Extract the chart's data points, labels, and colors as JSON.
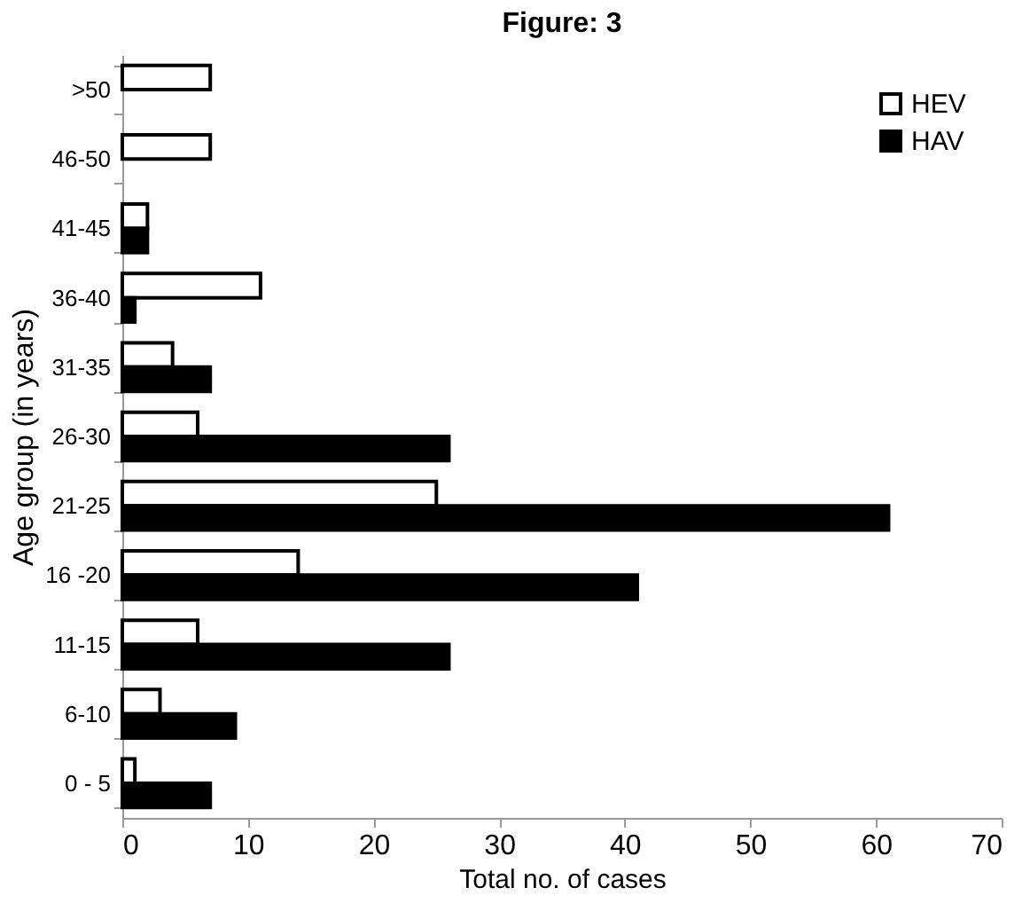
{
  "chart_data": {
    "type": "bar",
    "orientation": "horizontal",
    "title": "Figure: 3",
    "xlabel": "Total no. of cases",
    "ylabel": "Age group (in years)",
    "categories": [
      ">50",
      "46-50",
      "41-45",
      "36-40",
      "31-35",
      "26-30",
      "21-25",
      "16 -20",
      "11-15",
      "6-10",
      "0 - 5"
    ],
    "series": [
      {
        "name": "HEV",
        "color": "#ffffff",
        "values": [
          7,
          7,
          2,
          11,
          4,
          6,
          25,
          14,
          6,
          3,
          1
        ]
      },
      {
        "name": "HAV",
        "color": "#000000",
        "values": [
          null,
          null,
          2,
          1,
          7,
          26,
          61,
          41,
          26,
          9,
          7
        ]
      }
    ],
    "xlim": [
      0,
      70
    ],
    "xticks": [
      0,
      10,
      20,
      30,
      40,
      50,
      60,
      70
    ],
    "grid": false,
    "legend": "top right"
  }
}
